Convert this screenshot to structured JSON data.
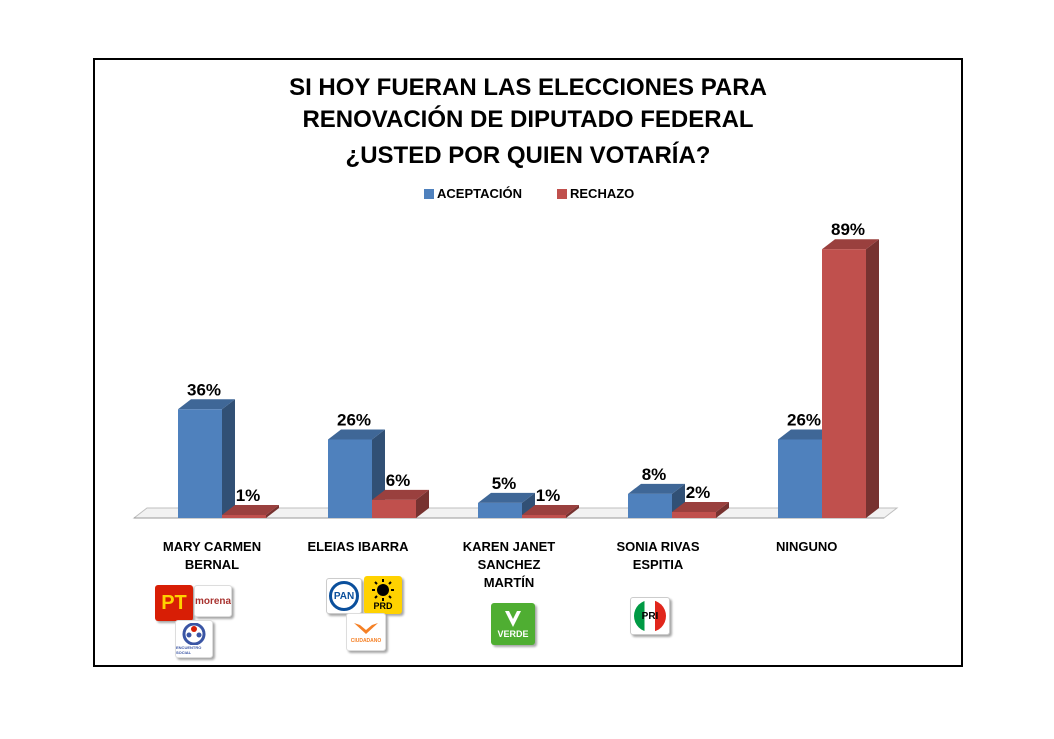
{
  "chart_data": {
    "type": "bar",
    "title_lines": [
      "SI HOY FUERAN LAS ELECCIONES PARA",
      "RENOVACIÓN DE DIPUTADO FEDERAL",
      "¿USTED POR QUIEN VOTARÍA?"
    ],
    "categories": [
      [
        "MARY CARMEN",
        "BERNAL"
      ],
      [
        "ELEIAS IBARRA"
      ],
      [
        "KAREN JANET",
        "SANCHEZ",
        "MARTÍN"
      ],
      [
        "SONIA RIVAS",
        "ESPITIA"
      ],
      [
        "NINGUNO"
      ]
    ],
    "series": [
      {
        "name": "ACEPTACIÓN",
        "values": [
          36,
          26,
          5,
          8,
          26
        ],
        "labels": [
          "36%",
          "26%",
          "5%",
          "8%",
          "26%"
        ],
        "color": "#4f81bd"
      },
      {
        "name": "RECHAZO",
        "values": [
          1,
          6,
          1,
          2,
          89
        ],
        "labels": [
          "1%",
          "6%",
          "1%",
          "2%",
          "89%"
        ],
        "color": "#c0504d"
      }
    ],
    "ylim": [
      0,
      100
    ],
    "legend_position": "top-center",
    "grid": false,
    "style": "3d-column"
  },
  "party_logos": [
    {
      "candidate": "MARY CARMEN BERNAL",
      "logos": [
        {
          "name": "pt-logo",
          "text": "PT"
        },
        {
          "name": "morena-logo",
          "text": "morena"
        },
        {
          "name": "encuentro-social-logo",
          "text": "ENCUENTRO SOCIAL"
        }
      ]
    },
    {
      "candidate": "ELEIAS IBARRA",
      "logos": [
        {
          "name": "pan-logo",
          "text": "PAN"
        },
        {
          "name": "prd-logo",
          "text": "PRD"
        },
        {
          "name": "movimiento-ciudadano-logo",
          "text": "CIUDADANO"
        }
      ]
    },
    {
      "candidate": "KAREN JANET SANCHEZ MARTÍN",
      "logos": [
        {
          "name": "verde-logo",
          "text": "VERDE"
        }
      ]
    },
    {
      "candidate": "SONIA RIVAS ESPITIA",
      "logos": [
        {
          "name": "pri-logo",
          "text": "PRI"
        }
      ]
    }
  ]
}
